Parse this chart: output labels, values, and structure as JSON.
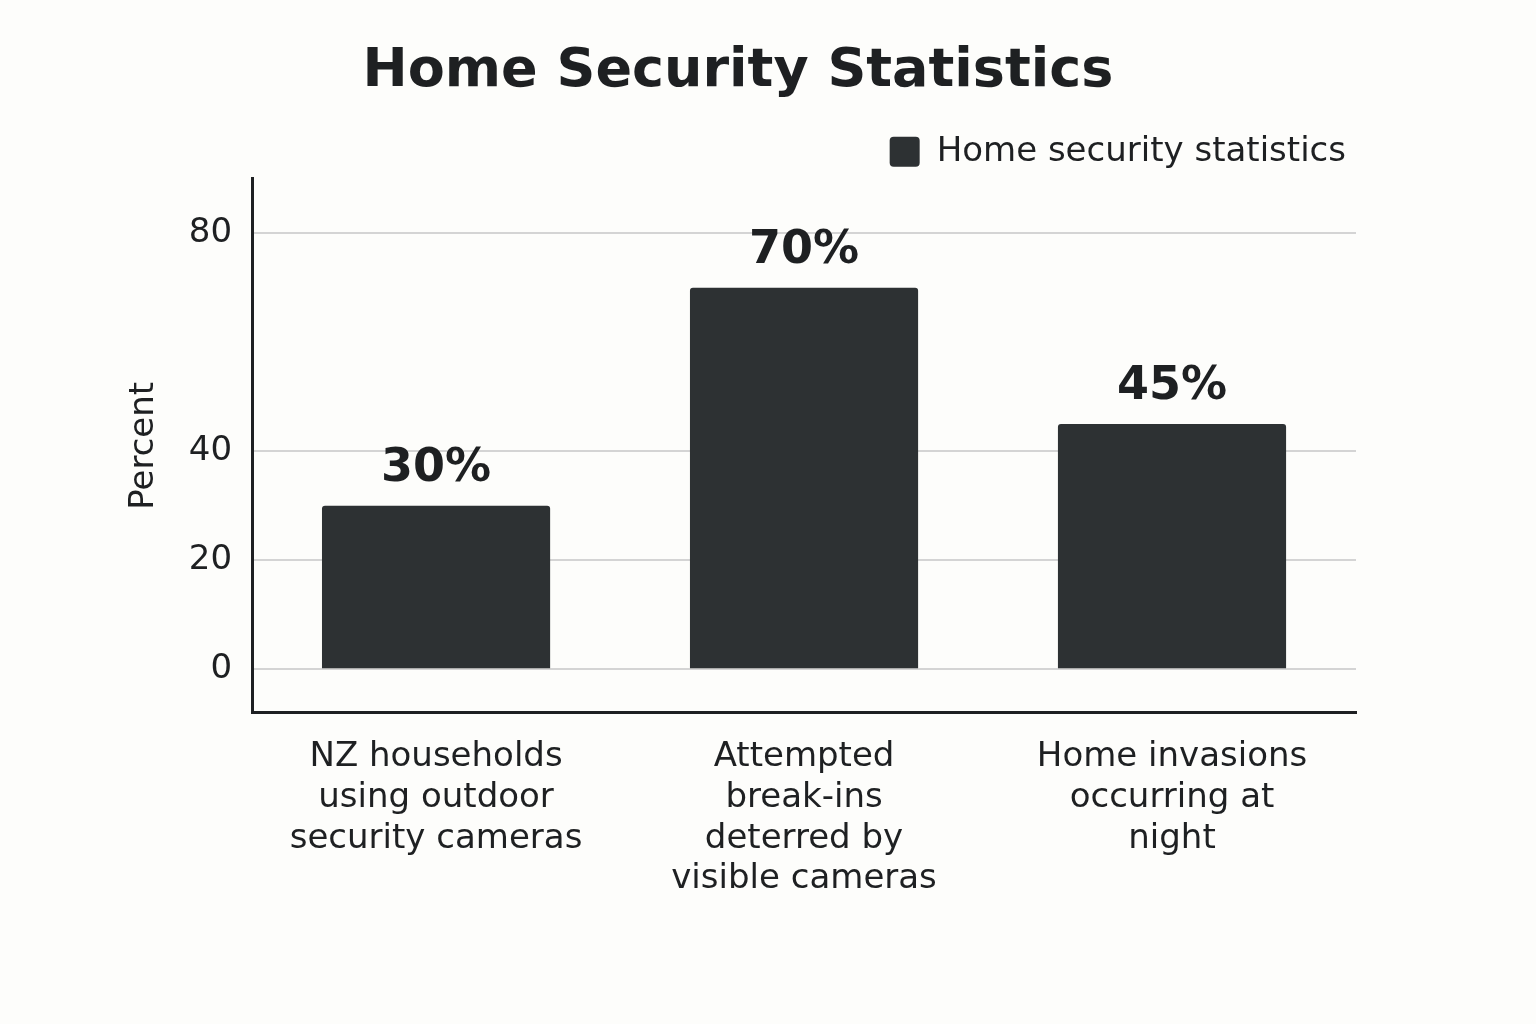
{
  "chart_data": {
    "type": "bar",
    "title": "Home Security Statistics",
    "ylabel": "Percent",
    "categories": [
      "NZ households using outdoor security cameras",
      "Attempted break-ins deterred by visible cameras",
      "Home invasions occurring at night"
    ],
    "series": [
      {
        "name": "Home security statistics",
        "color": "#2d3133",
        "values": [
          30,
          70,
          45
        ]
      }
    ],
    "value_labels": [
      "30%",
      "70%",
      "45%"
    ],
    "ylim": [
      -8,
      90
    ],
    "yticks": [
      0,
      20,
      40,
      80
    ],
    "grid": "y",
    "legend": "top right"
  }
}
